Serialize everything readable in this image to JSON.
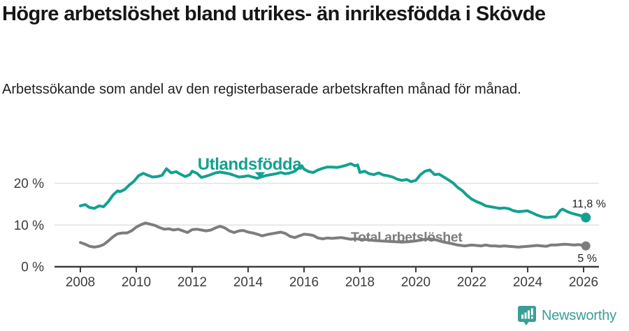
{
  "title": "Högre arbetslöshet bland utrikes- än inrikesfödda i Skövde",
  "subtitle": "Arbetssökande som andel av den registerbaserade arbetskraften månad för månad.",
  "footer": {
    "brand": "Newsworthy",
    "brand_color": "#3A9D96",
    "logo_icon": "speech-bubble-bar-chart-icon"
  },
  "chart_data": {
    "type": "line",
    "title": "Högre arbetslöshet bland utrikes- än inrikesfödda i Skövde",
    "xlabel": "",
    "ylabel": "",
    "grid": "horizontal",
    "legend_position": "inline-labels",
    "xlim": [
      2007.1,
      2026.6
    ],
    "ylim": [
      0,
      27
    ],
    "x_ticks": [
      2008,
      2010,
      2012,
      2014,
      2016,
      2018,
      2020,
      2022,
      2024,
      2026
    ],
    "x_tick_labels": [
      "2008",
      "2010",
      "2012",
      "2014",
      "2016",
      "2018",
      "2020",
      "2022",
      "2024",
      "2026"
    ],
    "y_ticks": [
      0,
      10,
      20
    ],
    "y_tick_labels": [
      "0 %",
      "10 %",
      "20 %"
    ],
    "axis_color": "#3C3C3C",
    "gridline_color": "#E2E2E2",
    "series": [
      {
        "name": "Utlandsfödda",
        "color": "#14A091",
        "end_label": "11,8 %",
        "end_value": 11.8,
        "points": [
          [
            2008.0,
            14.6
          ],
          [
            2008.17,
            14.9
          ],
          [
            2008.33,
            14.2
          ],
          [
            2008.5,
            14.0
          ],
          [
            2008.67,
            14.6
          ],
          [
            2008.83,
            14.4
          ],
          [
            2009.0,
            15.6
          ],
          [
            2009.17,
            17.2
          ],
          [
            2009.33,
            18.2
          ],
          [
            2009.42,
            18.0
          ],
          [
            2009.58,
            18.5
          ],
          [
            2009.75,
            19.6
          ],
          [
            2009.92,
            20.5
          ],
          [
            2010.08,
            21.8
          ],
          [
            2010.25,
            22.4
          ],
          [
            2010.42,
            21.9
          ],
          [
            2010.58,
            21.5
          ],
          [
            2010.75,
            21.6
          ],
          [
            2010.92,
            21.9
          ],
          [
            2011.08,
            23.5
          ],
          [
            2011.25,
            22.5
          ],
          [
            2011.42,
            22.8
          ],
          [
            2011.58,
            22.2
          ],
          [
            2011.75,
            21.6
          ],
          [
            2011.92,
            22.1
          ],
          [
            2012.0,
            22.9
          ],
          [
            2012.17,
            22.4
          ],
          [
            2012.33,
            21.4
          ],
          [
            2012.5,
            21.7
          ],
          [
            2012.67,
            22.1
          ],
          [
            2012.83,
            22.5
          ],
          [
            2013.0,
            22.7
          ],
          [
            2013.17,
            22.5
          ],
          [
            2013.33,
            22.3
          ],
          [
            2013.5,
            21.9
          ],
          [
            2013.67,
            21.5
          ],
          [
            2013.83,
            21.6
          ],
          [
            2014.0,
            21.8
          ],
          [
            2014.17,
            21.5
          ],
          [
            2014.33,
            21.2
          ],
          [
            2014.5,
            21.6
          ],
          [
            2014.67,
            21.9
          ],
          [
            2014.83,
            22.1
          ],
          [
            2015.0,
            22.3
          ],
          [
            2015.17,
            22.6
          ],
          [
            2015.33,
            22.3
          ],
          [
            2015.5,
            22.5
          ],
          [
            2015.67,
            22.9
          ],
          [
            2015.83,
            23.8
          ],
          [
            2015.92,
            24.2
          ],
          [
            2016.0,
            23.4
          ],
          [
            2016.17,
            22.8
          ],
          [
            2016.33,
            22.6
          ],
          [
            2016.5,
            23.2
          ],
          [
            2016.67,
            23.6
          ],
          [
            2016.83,
            23.9
          ],
          [
            2017.0,
            23.9
          ],
          [
            2017.17,
            23.8
          ],
          [
            2017.33,
            24.0
          ],
          [
            2017.5,
            24.3
          ],
          [
            2017.67,
            24.7
          ],
          [
            2017.83,
            24.2
          ],
          [
            2017.92,
            24.4
          ],
          [
            2018.0,
            22.6
          ],
          [
            2018.17,
            22.9
          ],
          [
            2018.33,
            22.3
          ],
          [
            2018.5,
            22.1
          ],
          [
            2018.67,
            22.5
          ],
          [
            2018.83,
            22.0
          ],
          [
            2019.0,
            21.8
          ],
          [
            2019.17,
            21.5
          ],
          [
            2019.33,
            21.0
          ],
          [
            2019.5,
            20.7
          ],
          [
            2019.67,
            20.9
          ],
          [
            2019.83,
            20.4
          ],
          [
            2020.0,
            20.7
          ],
          [
            2020.17,
            22.1
          ],
          [
            2020.33,
            22.9
          ],
          [
            2020.5,
            23.2
          ],
          [
            2020.67,
            22.1
          ],
          [
            2020.83,
            22.2
          ],
          [
            2021.0,
            21.5
          ],
          [
            2021.17,
            20.8
          ],
          [
            2021.33,
            20.1
          ],
          [
            2021.5,
            19.0
          ],
          [
            2021.67,
            18.2
          ],
          [
            2021.83,
            17.1
          ],
          [
            2022.0,
            16.2
          ],
          [
            2022.17,
            15.6
          ],
          [
            2022.33,
            15.2
          ],
          [
            2022.5,
            14.6
          ],
          [
            2022.67,
            14.4
          ],
          [
            2022.83,
            14.2
          ],
          [
            2023.0,
            14.0
          ],
          [
            2023.17,
            14.1
          ],
          [
            2023.33,
            13.9
          ],
          [
            2023.5,
            13.4
          ],
          [
            2023.67,
            13.2
          ],
          [
            2023.83,
            13.3
          ],
          [
            2024.0,
            13.4
          ],
          [
            2024.17,
            12.9
          ],
          [
            2024.33,
            12.4
          ],
          [
            2024.5,
            12.0
          ],
          [
            2024.67,
            11.8
          ],
          [
            2024.83,
            11.9
          ],
          [
            2025.0,
            12.0
          ],
          [
            2025.17,
            13.5
          ],
          [
            2025.25,
            13.8
          ],
          [
            2025.42,
            13.2
          ],
          [
            2025.58,
            12.8
          ],
          [
            2025.75,
            12.5
          ],
          [
            2025.92,
            12.2
          ],
          [
            2026.08,
            11.8
          ]
        ]
      },
      {
        "name": "Total arbetslöshet",
        "color": "#7D7D7D",
        "end_label": "5 %",
        "end_value": 5.0,
        "points": [
          [
            2008.0,
            5.8
          ],
          [
            2008.17,
            5.4
          ],
          [
            2008.33,
            4.9
          ],
          [
            2008.5,
            4.7
          ],
          [
            2008.67,
            4.9
          ],
          [
            2008.83,
            5.3
          ],
          [
            2009.0,
            6.2
          ],
          [
            2009.17,
            7.2
          ],
          [
            2009.33,
            7.9
          ],
          [
            2009.5,
            8.1
          ],
          [
            2009.67,
            8.1
          ],
          [
            2009.83,
            8.6
          ],
          [
            2010.0,
            9.5
          ],
          [
            2010.17,
            10.1
          ],
          [
            2010.33,
            10.5
          ],
          [
            2010.5,
            10.2
          ],
          [
            2010.67,
            9.9
          ],
          [
            2010.83,
            9.4
          ],
          [
            2011.0,
            9.0
          ],
          [
            2011.17,
            9.1
          ],
          [
            2011.33,
            8.8
          ],
          [
            2011.5,
            9.0
          ],
          [
            2011.67,
            8.6
          ],
          [
            2011.83,
            8.2
          ],
          [
            2012.0,
            8.9
          ],
          [
            2012.17,
            9.0
          ],
          [
            2012.33,
            8.8
          ],
          [
            2012.5,
            8.6
          ],
          [
            2012.67,
            8.8
          ],
          [
            2012.83,
            9.3
          ],
          [
            2013.0,
            9.7
          ],
          [
            2013.17,
            9.3
          ],
          [
            2013.33,
            8.6
          ],
          [
            2013.5,
            8.2
          ],
          [
            2013.67,
            8.6
          ],
          [
            2013.83,
            8.7
          ],
          [
            2014.0,
            8.3
          ],
          [
            2014.17,
            8.1
          ],
          [
            2014.33,
            7.8
          ],
          [
            2014.5,
            7.4
          ],
          [
            2014.67,
            7.7
          ],
          [
            2014.83,
            7.9
          ],
          [
            2015.0,
            8.1
          ],
          [
            2015.17,
            8.3
          ],
          [
            2015.33,
            8.0
          ],
          [
            2015.5,
            7.3
          ],
          [
            2015.67,
            7.0
          ],
          [
            2015.83,
            7.4
          ],
          [
            2016.0,
            7.8
          ],
          [
            2016.17,
            7.7
          ],
          [
            2016.33,
            7.5
          ],
          [
            2016.5,
            6.9
          ],
          [
            2016.67,
            6.7
          ],
          [
            2016.83,
            6.9
          ],
          [
            2017.0,
            6.8
          ],
          [
            2017.17,
            6.9
          ],
          [
            2017.33,
            7.0
          ],
          [
            2017.5,
            6.8
          ],
          [
            2017.67,
            6.6
          ],
          [
            2017.83,
            6.7
          ],
          [
            2018.0,
            6.6
          ],
          [
            2018.25,
            6.5
          ],
          [
            2018.5,
            6.3
          ],
          [
            2018.75,
            6.2
          ],
          [
            2019.0,
            6.1
          ],
          [
            2019.25,
            6.0
          ],
          [
            2019.5,
            5.9
          ],
          [
            2019.75,
            6.0
          ],
          [
            2020.0,
            6.2
          ],
          [
            2020.25,
            6.5
          ],
          [
            2020.5,
            6.7
          ],
          [
            2020.75,
            6.4
          ],
          [
            2021.0,
            5.9
          ],
          [
            2021.25,
            5.6
          ],
          [
            2021.5,
            5.2
          ],
          [
            2021.75,
            5.0
          ],
          [
            2022.0,
            5.2
          ],
          [
            2022.17,
            5.1
          ],
          [
            2022.33,
            5.0
          ],
          [
            2022.5,
            5.2
          ],
          [
            2022.67,
            5.0
          ],
          [
            2022.83,
            5.0
          ],
          [
            2023.0,
            4.9
          ],
          [
            2023.17,
            5.0
          ],
          [
            2023.33,
            4.9
          ],
          [
            2023.5,
            4.8
          ],
          [
            2023.67,
            4.7
          ],
          [
            2023.83,
            4.8
          ],
          [
            2024.0,
            4.9
          ],
          [
            2024.17,
            5.0
          ],
          [
            2024.33,
            5.1
          ],
          [
            2024.5,
            5.0
          ],
          [
            2024.67,
            4.9
          ],
          [
            2024.83,
            5.2
          ],
          [
            2025.0,
            5.2
          ],
          [
            2025.17,
            5.3
          ],
          [
            2025.33,
            5.4
          ],
          [
            2025.5,
            5.3
          ],
          [
            2025.67,
            5.2
          ],
          [
            2025.83,
            5.3
          ],
          [
            2026.0,
            5.1
          ],
          [
            2026.08,
            5.0
          ]
        ]
      }
    ]
  }
}
